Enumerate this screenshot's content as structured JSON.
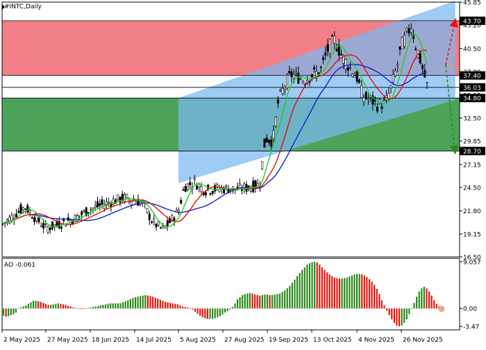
{
  "header": {
    "symbol_label": "#INTC,Daily"
  },
  "indicator": {
    "label": "AO -0.061"
  },
  "colors": {
    "background": "#ffffff",
    "sell_zone": "#f37f86",
    "buy_zone": "#4ea35b",
    "channel": "#7ab9f0",
    "candle": "#000000",
    "ma_fast": "#22cc22",
    "ma_mid": "#dd1111",
    "ma_slow": "#1122cc",
    "ao_up": "#2a8a1a",
    "ao_down": "#e8140c",
    "arrow_up": "#ee1111",
    "arrow_down": "#2a8a1a",
    "badge": "#000000"
  },
  "chart_data": [
    {
      "type": "candlestick",
      "title": "#INTC,Daily",
      "xlabel": "",
      "ylabel": "",
      "ylim": [
        16.5,
        45.85
      ],
      "grid": false,
      "x_tick_labels": [
        "2 May 2025",
        "27 May 2025",
        "18 Jun 2025",
        "14 Jul 2025",
        "5 Aug 2025",
        "27 Aug 2025",
        "19 Sep 2025",
        "13 Oct 2025",
        "4 Nov 2025",
        "26 Nov 2025"
      ],
      "y_tick_labels": [
        "45.85",
        "43.20",
        "40.50",
        "37.80",
        "35.15",
        "32.50",
        "29.85",
        "27.15",
        "24.50",
        "21.80",
        "19.15",
        "16.50"
      ],
      "price_levels": [
        {
          "label": "43.70",
          "value": 43.7
        },
        {
          "label": "37.40",
          "value": 37.4
        },
        {
          "label": "36.03",
          "value": 36.03
        },
        {
          "label": "34.80",
          "value": 34.8
        },
        {
          "label": "28.70",
          "value": 28.7
        }
      ],
      "zones": [
        {
          "name": "sell",
          "from": 37.4,
          "to": 43.7
        },
        {
          "name": "buy",
          "from": 28.7,
          "to": 34.8
        }
      ],
      "channel": {
        "upper": [
          {
            "x": "5 Aug 2025",
            "y": 34.8
          },
          {
            "x": "9 Dec 2025",
            "y": 46.0
          }
        ],
        "lower": [
          {
            "x": "5 Aug 2025",
            "y": 25.0
          },
          {
            "x": "9 Dec 2025",
            "y": 34.6
          }
        ]
      },
      "forecast_arrows": [
        {
          "direction": "up",
          "from": 38.6,
          "to": 43.5
        },
        {
          "direction": "down",
          "from": 38.6,
          "to": 28.8
        }
      ],
      "close_path": [
        {
          "x": "2 May 2025",
          "close": 20.2
        },
        {
          "x": "10 May 2025",
          "close": 21.5
        },
        {
          "x": "15 May 2025",
          "close": 22.3
        },
        {
          "x": "20 May 2025",
          "close": 21.2
        },
        {
          "x": "27 May 2025",
          "close": 19.8
        },
        {
          "x": "3 Jun 2025",
          "close": 20.3
        },
        {
          "x": "10 Jun 2025",
          "close": 20.9
        },
        {
          "x": "18 Jun 2025",
          "close": 22.0
        },
        {
          "x": "25 Jun 2025",
          "close": 22.5
        },
        {
          "x": "2 Jul 2025",
          "close": 23.0
        },
        {
          "x": "8 Jul 2025",
          "close": 23.3
        },
        {
          "x": "14 Jul 2025",
          "close": 23.0
        },
        {
          "x": "18 Jul 2025",
          "close": 22.7
        },
        {
          "x": "23 Jul 2025",
          "close": 20.5
        },
        {
          "x": "28 Jul 2025",
          "close": 19.7
        },
        {
          "x": "31 Jul 2025",
          "close": 20.3
        },
        {
          "x": "5 Aug 2025",
          "close": 21.8
        },
        {
          "x": "8 Aug 2025",
          "close": 24.6
        },
        {
          "x": "13 Aug 2025",
          "close": 25.1
        },
        {
          "x": "18 Aug 2025",
          "close": 24.2
        },
        {
          "x": "22 Aug 2025",
          "close": 24.3
        },
        {
          "x": "27 Aug 2025",
          "close": 24.4
        },
        {
          "x": "3 Sep 2025",
          "close": 24.3
        },
        {
          "x": "9 Sep 2025",
          "close": 24.5
        },
        {
          "x": "15 Sep 2025",
          "close": 24.8
        },
        {
          "x": "18 Sep 2025",
          "close": 30.2
        },
        {
          "x": "22 Sep 2025",
          "close": 29.8
        },
        {
          "x": "25 Sep 2025",
          "close": 34.5
        },
        {
          "x": "29 Sep 2025",
          "close": 36.5
        },
        {
          "x": "2 Oct 2025",
          "close": 37.5
        },
        {
          "x": "6 Oct 2025",
          "close": 37.2
        },
        {
          "x": "9 Oct 2025",
          "close": 36.8
        },
        {
          "x": "13 Oct 2025",
          "close": 37.5
        },
        {
          "x": "17 Oct 2025",
          "close": 37.8
        },
        {
          "x": "21 Oct 2025",
          "close": 40.5
        },
        {
          "x": "24 Oct 2025",
          "close": 41.5
        },
        {
          "x": "28 Oct 2025",
          "close": 39.5
        },
        {
          "x": "31 Oct 2025",
          "close": 38.5
        },
        {
          "x": "4 Nov 2025",
          "close": 37.2
        },
        {
          "x": "7 Nov 2025",
          "close": 35.0
        },
        {
          "x": "11 Nov 2025",
          "close": 34.6
        },
        {
          "x": "14 Nov 2025",
          "close": 34.0
        },
        {
          "x": "18 Nov 2025",
          "close": 34.2
        },
        {
          "x": "21 Nov 2025",
          "close": 36.0
        },
        {
          "x": "24 Nov 2025",
          "close": 38.5
        },
        {
          "x": "26 Nov 2025",
          "close": 40.8
        },
        {
          "x": "1 Dec 2025",
          "close": 43.2
        },
        {
          "x": "3 Dec 2025",
          "close": 41.0
        },
        {
          "x": "5 Dec 2025",
          "close": 39.5
        },
        {
          "x": "9 Dec 2025",
          "close": 36.03
        }
      ]
    },
    {
      "type": "bar",
      "title": "AO -0.061",
      "ylim": [
        -3.47,
        9.057
      ],
      "y_tick_labels": [
        "9.057",
        "0.00",
        "-3.47"
      ],
      "last_value": -0.061,
      "values": [
        -1.4,
        -1.6,
        -1.5,
        -1.3,
        -1.1,
        -0.8,
        0.1,
        0.2,
        0.4,
        0.6,
        0.9,
        1.2,
        1.5,
        1.5,
        1.4,
        1.3,
        1.1,
        0.9,
        0.7,
        0.7,
        0.8,
        0.9,
        1.0,
        0.9,
        0.8,
        0.7,
        0.5,
        0.4,
        0.2,
        0.1,
        0.0,
        -0.1,
        -0.1,
        -0.1,
        0.1,
        0.2,
        0.3,
        0.4,
        0.5,
        0.6,
        0.7,
        0.8,
        0.9,
        1.0,
        1.0,
        1.0,
        1.0,
        1.0,
        1.2,
        1.4,
        1.6,
        1.8,
        2.0,
        2.2,
        2.3,
        2.4,
        2.5,
        2.6,
        2.5,
        2.4,
        2.3,
        2.1,
        1.9,
        1.7,
        1.5,
        1.3,
        1.2,
        1.1,
        1.0,
        0.9,
        0.8,
        0.6,
        0.4,
        0.3,
        0.2,
        0.0,
        -0.2,
        -0.6,
        -1.0,
        -1.4,
        -1.7,
        -1.9,
        -2.0,
        -2.0,
        -2.0,
        -1.9,
        -1.7,
        -1.5,
        -1.2,
        -0.8,
        -0.5,
        -0.2,
        0.3,
        1.0,
        1.8,
        2.2,
        2.6,
        2.8,
        2.9,
        3.0,
        2.9,
        2.7,
        2.6,
        2.5,
        2.6,
        2.7,
        2.7,
        2.6,
        2.6,
        2.7,
        2.8,
        2.9,
        3.2,
        3.5,
        3.9,
        4.4,
        5.0,
        5.6,
        6.3,
        6.9,
        7.5,
        8.0,
        8.5,
        8.8,
        9.0,
        9.057,
        8.9,
        8.5,
        8.0,
        7.5,
        7.0,
        6.6,
        6.3,
        6.0,
        5.9,
        5.8,
        5.8,
        5.9,
        6.0,
        6.2,
        6.4,
        6.6,
        6.7,
        6.7,
        6.6,
        6.4,
        6.1,
        5.7,
        5.2,
        4.6,
        3.8,
        2.8,
        1.6,
        0.6,
        -0.4,
        -1.3,
        -2.1,
        -2.8,
        -3.3,
        -3.47,
        -3.3,
        -2.8,
        -2.1,
        -1.1,
        0.0,
        1.1,
        2.3,
        3.3,
        3.9,
        4.2,
        3.9,
        3.3,
        2.5,
        1.6,
        0.9,
        0.4,
        -0.061
      ]
    }
  ]
}
